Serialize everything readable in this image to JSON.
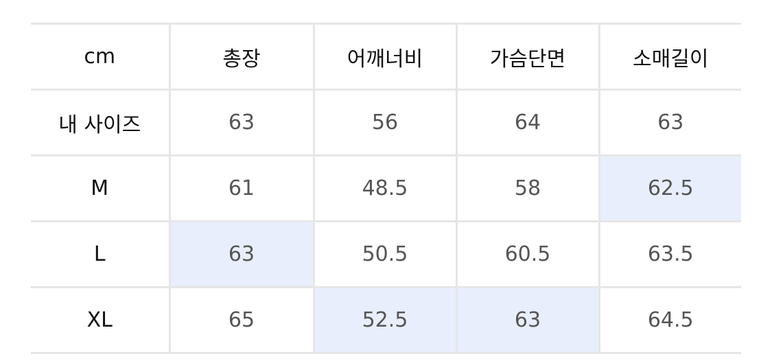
{
  "table": {
    "headers": [
      "cm",
      "총장",
      "어깨너비",
      "가슴단면",
      "소매길이"
    ],
    "rows": [
      {
        "label": "내 사이즈",
        "values": [
          "63",
          "56",
          "64",
          "63"
        ],
        "highlight": [
          false,
          false,
          false,
          false
        ]
      },
      {
        "label": "M",
        "values": [
          "61",
          "48.5",
          "58",
          "62.5"
        ],
        "highlight": [
          false,
          false,
          false,
          true
        ]
      },
      {
        "label": "L",
        "values": [
          "63",
          "50.5",
          "60.5",
          "63.5"
        ],
        "highlight": [
          true,
          false,
          false,
          false
        ]
      },
      {
        "label": "XL",
        "values": [
          "65",
          "52.5",
          "63",
          "64.5"
        ],
        "highlight": [
          false,
          true,
          true,
          false
        ]
      }
    ],
    "highlight_color": "#e8eefb"
  }
}
